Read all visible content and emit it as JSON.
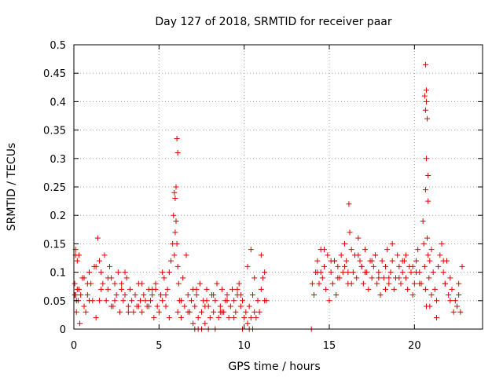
{
  "chart_data": {
    "type": "scatter",
    "title": "Day 127 of 2018, SRMTID for receiver paar",
    "xlabel": "GPS time / hours",
    "ylabel": "SRMTID / TECUs",
    "xlim": [
      0,
      24
    ],
    "ylim": [
      0,
      0.5
    ],
    "grid": true,
    "marker": "+",
    "color": "#e00000",
    "x_ticks": [
      {
        "value": 0,
        "label": "0"
      },
      {
        "value": 5,
        "label": "5"
      },
      {
        "value": 10,
        "label": "10"
      },
      {
        "value": 15,
        "label": "15"
      },
      {
        "value": 20,
        "label": "20"
      }
    ],
    "y_ticks": [
      {
        "value": 0,
        "label": "0"
      },
      {
        "value": 0.05,
        "label": "0.05"
      },
      {
        "value": 0.1,
        "label": "0.1"
      },
      {
        "value": 0.15,
        "label": "0.15"
      },
      {
        "value": 0.2,
        "label": "0.2"
      },
      {
        "value": 0.25,
        "label": "0.25"
      },
      {
        "value": 0.3,
        "label": "0.3"
      },
      {
        "value": 0.35,
        "label": "0.35"
      },
      {
        "value": 0.4,
        "label": "0.4"
      },
      {
        "value": 0.45,
        "label": "0.45"
      },
      {
        "value": 0.5,
        "label": "0.5"
      }
    ],
    "series": [
      {
        "name": "SRMTID",
        "x": [
          0.05,
          0.1,
          0.15,
          0.2,
          0.25,
          0.3,
          0.35,
          0.4,
          0.5,
          0.6,
          0.7,
          0.8,
          0.9,
          1.0,
          1.1,
          1.2,
          1.3,
          1.4,
          1.5,
          1.6,
          1.7,
          1.8,
          1.9,
          2.0,
          2.1,
          2.2,
          2.3,
          2.4,
          2.5,
          2.6,
          2.7,
          2.8,
          2.9,
          3.0,
          3.1,
          3.2,
          3.3,
          3.4,
          3.5,
          3.6,
          3.7,
          3.8,
          3.9,
          4.0,
          4.1,
          4.2,
          4.3,
          4.4,
          4.5,
          4.6,
          4.7,
          4.8,
          4.9,
          5.0,
          5.1,
          5.2,
          5.3,
          5.4,
          5.5,
          5.6,
          5.7,
          5.8,
          5.85,
          5.9,
          5.95,
          6.0,
          6.05,
          6.1,
          6.15,
          6.2,
          6.3,
          6.4,
          6.5,
          6.6,
          6.7,
          6.8,
          6.9,
          7.0,
          7.1,
          7.2,
          7.3,
          7.4,
          7.5,
          7.6,
          7.7,
          7.8,
          7.9,
          8.0,
          8.1,
          8.2,
          8.3,
          8.4,
          8.5,
          8.6,
          8.7,
          8.8,
          8.9,
          9.0,
          9.1,
          9.2,
          9.3,
          9.4,
          9.5,
          9.6,
          9.7,
          9.8,
          9.9,
          10.0,
          10.1,
          10.2,
          10.3,
          10.4,
          10.5,
          10.6,
          10.7,
          10.8,
          10.9,
          11.0,
          11.1,
          11.2,
          11.3,
          14.0,
          14.1,
          14.2,
          14.3,
          14.4,
          14.5,
          14.6,
          14.7,
          14.8,
          14.9,
          15.0,
          15.1,
          15.2,
          15.3,
          15.4,
          15.5,
          15.6,
          15.7,
          15.8,
          15.9,
          16.0,
          16.1,
          16.2,
          16.3,
          16.4,
          16.5,
          16.6,
          16.7,
          16.8,
          16.9,
          17.0,
          17.1,
          17.2,
          17.3,
          17.4,
          17.5,
          17.6,
          17.7,
          17.8,
          17.9,
          18.0,
          18.1,
          18.2,
          18.3,
          18.4,
          18.5,
          18.6,
          18.7,
          18.8,
          18.9,
          19.0,
          19.1,
          19.2,
          19.3,
          19.4,
          19.5,
          19.6,
          19.7,
          19.8,
          19.9,
          20.0,
          20.1,
          20.2,
          20.3,
          20.4,
          20.5,
          20.55,
          20.6,
          20.65,
          20.7,
          20.75,
          20.8,
          20.85,
          20.9,
          21.0,
          21.1,
          21.2,
          21.3,
          21.4,
          21.5,
          21.6,
          21.7,
          21.8,
          21.9,
          22.0,
          22.1,
          22.2,
          22.3,
          22.4,
          22.5,
          22.6,
          22.7,
          22.8,
          0.1,
          0.3,
          0.6,
          0.9,
          1.3,
          1.6,
          2.0,
          2.4,
          2.8,
          3.2,
          3.6,
          4.0,
          4.4,
          4.8,
          5.2,
          5.6,
          6.3,
          6.7,
          7.2,
          7.7,
          8.2,
          8.6,
          9.0,
          9.4,
          9.8,
          10.2,
          10.6,
          11.0,
          14.3,
          14.7,
          15.1,
          15.5,
          15.9,
          16.3,
          16.7,
          17.1,
          17.5,
          17.9,
          18.3,
          18.7,
          19.1,
          19.5,
          19.9,
          20.3,
          20.9,
          21.3,
          21.7,
          22.1,
          22.5,
          0.2,
          0.8,
          1.5,
          2.2,
          3.0,
          3.8,
          4.6,
          5.4,
          6.1,
          7.0,
          7.8,
          8.7,
          9.6,
          10.4,
          11.2,
          14.5,
          15.3,
          16.1,
          16.9,
          17.7,
          18.5,
          19.3,
          20.1,
          21.0,
          21.8,
          22.6,
          0.05,
          0.15,
          0.1,
          6.05,
          6.1,
          6.0,
          5.9,
          5.95,
          20.65,
          20.7,
          20.6,
          20.7,
          20.65,
          20.75,
          20.7,
          20.8,
          20.65,
          20.8,
          7.1,
          7.3,
          7.5,
          7.9,
          8.3,
          9.9,
          10.3,
          10.5,
          13.95,
          16.15
        ],
        "y": [
          0.08,
          0.14,
          0.03,
          0.12,
          0.05,
          0.07,
          0.01,
          0.06,
          0.09,
          0.04,
          0.03,
          0.06,
          0.1,
          0.08,
          0.05,
          0.11,
          0.02,
          0.16,
          0.12,
          0.1,
          0.08,
          0.13,
          0.05,
          0.07,
          0.11,
          0.09,
          0.04,
          0.08,
          0.06,
          0.1,
          0.03,
          0.07,
          0.05,
          0.06,
          0.09,
          0.04,
          0.07,
          0.05,
          0.03,
          0.06,
          0.04,
          0.08,
          0.05,
          0.03,
          0.06,
          0.05,
          0.04,
          0.07,
          0.05,
          0.06,
          0.02,
          0.08,
          0.04,
          0.03,
          0.06,
          0.05,
          0.09,
          0.04,
          0.07,
          0.1,
          0.12,
          0.15,
          0.2,
          0.13,
          0.17,
          0.19,
          0.15,
          0.11,
          0.08,
          0.05,
          0.02,
          0.09,
          0.04,
          0.13,
          0.06,
          0.03,
          0.05,
          0.01,
          0.04,
          0.06,
          0.02,
          0.08,
          0.03,
          0.05,
          0.01,
          0.07,
          0.04,
          0.02,
          0.06,
          0.03,
          0.05,
          0.08,
          0.02,
          0.04,
          0.07,
          0.03,
          0.05,
          0.06,
          0.02,
          0.04,
          0.07,
          0.05,
          0.03,
          0.06,
          0.08,
          0.04,
          0.05,
          0.02,
          0.03,
          0.01,
          0.04,
          0.02,
          0.06,
          0.03,
          0.02,
          0.05,
          0.03,
          0.07,
          0.09,
          0.1,
          0.05,
          0.08,
          0.06,
          0.1,
          0.12,
          0.08,
          0.14,
          0.09,
          0.11,
          0.07,
          0.13,
          0.05,
          0.1,
          0.08,
          0.12,
          0.06,
          0.11,
          0.09,
          0.13,
          0.1,
          0.15,
          0.12,
          0.08,
          0.17,
          0.14,
          0.1,
          0.13,
          0.09,
          0.16,
          0.12,
          0.11,
          0.08,
          0.14,
          0.1,
          0.07,
          0.12,
          0.09,
          0.11,
          0.13,
          0.08,
          0.1,
          0.06,
          0.12,
          0.09,
          0.11,
          0.14,
          0.08,
          0.1,
          0.12,
          0.07,
          0.09,
          0.13,
          0.11,
          0.08,
          0.1,
          0.12,
          0.09,
          0.07,
          0.11,
          0.1,
          0.06,
          0.08,
          0.12,
          0.14,
          0.1,
          0.08,
          0.19,
          0.15,
          0.11,
          0.07,
          0.04,
          0.16,
          0.13,
          0.09,
          0.12,
          0.14,
          0.1,
          0.07,
          0.05,
          0.11,
          0.13,
          0.15,
          0.1,
          0.08,
          0.12,
          0.06,
          0.09,
          0.07,
          0.03,
          0.05,
          0.04,
          0.06,
          0.03,
          0.11,
          0.06,
          0.13,
          0.09,
          0.05,
          0.11,
          0.07,
          0.09,
          0.05,
          0.08,
          0.03,
          0.06,
          0.08,
          0.04,
          0.07,
          0.1,
          0.02,
          0.05,
          0.03,
          0.07,
          0.04,
          0.06,
          0.03,
          0.05,
          0.02,
          0.06,
          0.11,
          0.09,
          0.13,
          0.1,
          0.14,
          0.12,
          0.09,
          0.11,
          0.08,
          0.13,
          0.1,
          0.12,
          0.09,
          0.07,
          0.15,
          0.09,
          0.13,
          0.11,
          0.08,
          0.04,
          0.02,
          0.12,
          0.05,
          0.04,
          0.07,
          0.08,
          0.05,
          0.04,
          0.1,
          0.04,
          0.07,
          0.06,
          0.03,
          0.07,
          0.05,
          0.03,
          0.07,
          0.14,
          0.05,
          0.1,
          0.12,
          0.1,
          0.11,
          0.13,
          0.09,
          0.12,
          0.1,
          0.06,
          0.08,
          0.08,
          0.06,
          0.05,
          0.13,
          0.335,
          0.31,
          0.25,
          0.24,
          0.23,
          0.465,
          0.42,
          0.41,
          0.4,
          0.385,
          0.37,
          0.3,
          0.27,
          0.245,
          0.225,
          0.0,
          0.0,
          0.0,
          0.0,
          0.0,
          0.0,
          0.0,
          0.0,
          0.0,
          0.22
        ]
      }
    ]
  }
}
